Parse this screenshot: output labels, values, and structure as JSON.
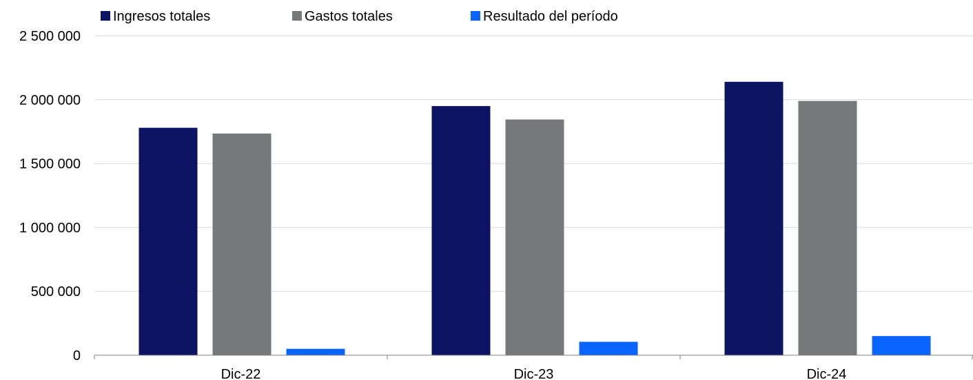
{
  "chart_data": {
    "type": "bar",
    "title": "",
    "xlabel": "",
    "ylabel": "",
    "categories": [
      "Dic-22",
      "Dic-23",
      "Dic-24"
    ],
    "series": [
      {
        "name": "Ingresos totales",
        "color": "#0d1463",
        "values": [
          1780000,
          1950000,
          2140000
        ]
      },
      {
        "name": "Gastos totales",
        "color": "#76787a",
        "values": [
          1735000,
          1845000,
          1990000
        ]
      },
      {
        "name": "Resultado del período",
        "color": "#0a64ff",
        "values": [
          50000,
          105000,
          150000
        ]
      }
    ],
    "ylim": [
      0,
      2500000
    ],
    "yticks": [
      0,
      500000,
      1000000,
      1500000,
      2000000,
      2500000
    ],
    "ytick_labels": [
      "0",
      "500 000",
      "1 000 000",
      "1 500 000",
      "2 000 000",
      "2 500 000"
    ],
    "grid": true,
    "legend_position": "top"
  }
}
